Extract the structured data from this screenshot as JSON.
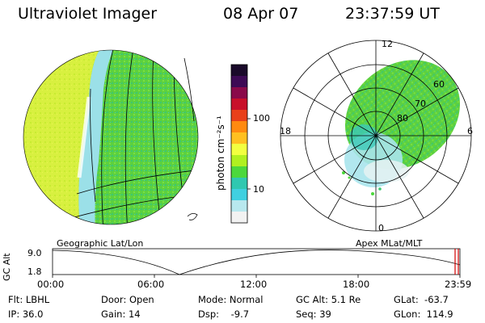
{
  "header": {
    "instrument": "Ultraviolet Imager",
    "date": "08 Apr 07",
    "time": "23:37:59 UT"
  },
  "colorbar": {
    "unit_label": "photon cm⁻²s⁻¹",
    "ticks": [
      "100",
      "10"
    ],
    "colors": [
      "#1a0a2a",
      "#3d0a55",
      "#8a0a4a",
      "#c8102a",
      "#e8401a",
      "#ff8a10",
      "#ffc020",
      "#f2ff40",
      "#b0f020",
      "#4cd83c",
      "#30c8b0",
      "#40d0e0",
      "#b8e8ee",
      "#f2f2f2"
    ]
  },
  "left_map": {
    "label": "Geographic Lat/Lon"
  },
  "polar_plot": {
    "label": "Apex MLat/MLT",
    "mlt_labels": {
      "top": "12",
      "left": "18",
      "right": "6",
      "bottom": "0"
    },
    "mlat_labels": [
      "60",
      "70",
      "80"
    ]
  },
  "timeline": {
    "y_label": "GC Alt",
    "y_ticks": [
      "9.0",
      "1.8"
    ],
    "x_ticks": [
      "00:00",
      "06:00",
      "12:00",
      "18:00",
      "23:59"
    ]
  },
  "info": {
    "flt": "Flt: LBHL",
    "ip": "IP: 36.0",
    "door": "Door: Open",
    "gain": "Gain: 14",
    "mode": "Mode: Normal",
    "dsp": "Dsp:    -9.7",
    "gc_alt": "GC Alt: 5.1 Re",
    "seq": "Seq: 39",
    "glat": "GLat:  -63.7",
    "glon": "GLon:  114.9"
  }
}
